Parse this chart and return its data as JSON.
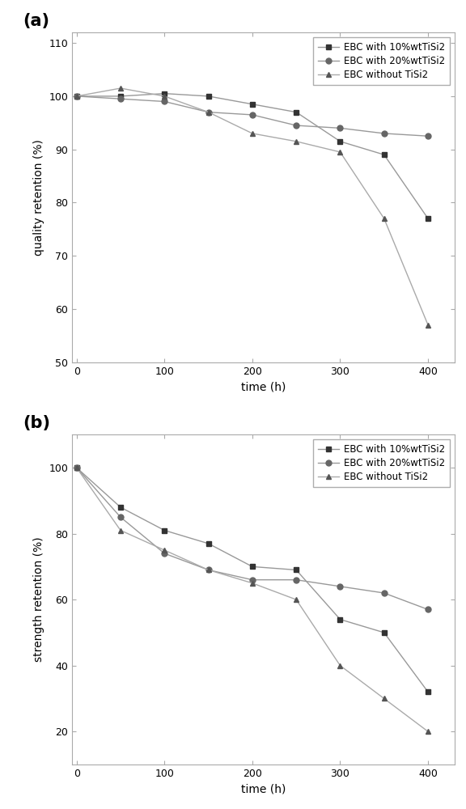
{
  "panel_a": {
    "title": "(a)",
    "xlabel": "time (h)",
    "ylabel": "quality retention (%)",
    "ylim": [
      50,
      112
    ],
    "xlim": [
      -5,
      430
    ],
    "yticks": [
      50,
      60,
      70,
      80,
      90,
      100,
      110
    ],
    "xticks": [
      0,
      100,
      200,
      300,
      400
    ],
    "series": [
      {
        "label": "EBC with 10%wtTiSi2",
        "x": [
          0,
          50,
          100,
          150,
          200,
          250,
          300,
          350,
          400
        ],
        "y": [
          100,
          100,
          100.5,
          100,
          98.5,
          97,
          91.5,
          89,
          77
        ],
        "line_color": "#999999",
        "marker_color": "#333333",
        "marker": "s",
        "linestyle": "-"
      },
      {
        "label": "EBC with 20%wtTiSi2",
        "x": [
          0,
          50,
          100,
          150,
          200,
          250,
          300,
          350,
          400
        ],
        "y": [
          100,
          99.5,
          99,
          97,
          96.5,
          94.5,
          94,
          93,
          92.5
        ],
        "line_color": "#999999",
        "marker_color": "#666666",
        "marker": "o",
        "linestyle": "-"
      },
      {
        "label": "EBC without TiSi2",
        "x": [
          0,
          50,
          100,
          150,
          200,
          250,
          300,
          350,
          400
        ],
        "y": [
          100,
          101.5,
          100,
          97,
          93,
          91.5,
          89.5,
          77,
          57
        ],
        "line_color": "#aaaaaa",
        "marker_color": "#555555",
        "marker": "^",
        "linestyle": "-"
      }
    ]
  },
  "panel_b": {
    "title": "(b)",
    "xlabel": "time (h)",
    "ylabel": "strength retention (%)",
    "ylim": [
      10,
      110
    ],
    "xlim": [
      -5,
      430
    ],
    "yticks": [
      20,
      40,
      60,
      80,
      100
    ],
    "xticks": [
      0,
      100,
      200,
      300,
      400
    ],
    "series": [
      {
        "label": "EBC with 10%wtTiSi2",
        "x": [
          0,
          50,
          100,
          150,
          200,
          250,
          300,
          350,
          400
        ],
        "y": [
          100,
          88,
          81,
          77,
          70,
          69,
          54,
          50,
          32
        ],
        "line_color": "#999999",
        "marker_color": "#333333",
        "marker": "s",
        "linestyle": "-"
      },
      {
        "label": "EBC with 20%wtTiSi2",
        "x": [
          0,
          50,
          100,
          150,
          200,
          250,
          300,
          350,
          400
        ],
        "y": [
          100,
          85,
          74,
          69,
          66,
          66,
          64,
          62,
          57
        ],
        "line_color": "#999999",
        "marker_color": "#666666",
        "marker": "o",
        "linestyle": "-"
      },
      {
        "label": "EBC without TiSi2",
        "x": [
          0,
          50,
          100,
          150,
          200,
          250,
          300,
          350,
          400
        ],
        "y": [
          100,
          81,
          75,
          69,
          65,
          60,
          40,
          30,
          20
        ],
        "line_color": "#aaaaaa",
        "marker_color": "#555555",
        "marker": "^",
        "linestyle": "-"
      }
    ]
  },
  "line_width": 1.0,
  "marker_size": 5,
  "font_size_label": 10,
  "font_size_tick": 9,
  "font_size_title": 15,
  "font_size_legend": 8.5
}
